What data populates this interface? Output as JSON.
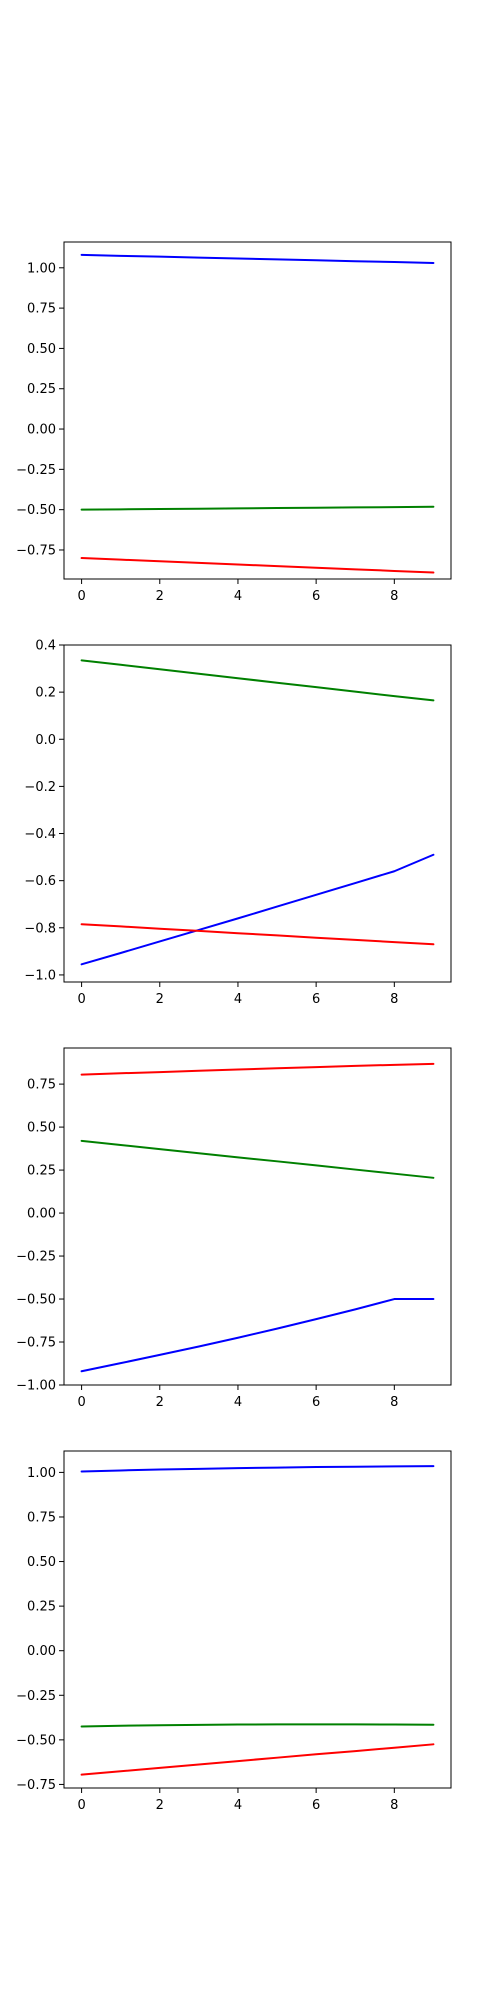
{
  "chart_data": [
    {
      "type": "line",
      "x": [
        0,
        1,
        2,
        3,
        4,
        5,
        6,
        7,
        8,
        9
      ],
      "xlim": [
        -0.45,
        9.45
      ],
      "ylim": [
        -0.93,
        1.16
      ],
      "xticks": [
        "0",
        "2",
        "4",
        "6",
        "8"
      ],
      "yticks": [
        "1.00",
        "0.75",
        "0.50",
        "0.25",
        "0.00",
        "−0.25",
        "−0.50",
        "−0.75"
      ],
      "series": [
        {
          "color": "#0000ff",
          "values": [
            1.08,
            1.074,
            1.069,
            1.063,
            1.058,
            1.052,
            1.047,
            1.041,
            1.036,
            1.03
          ]
        },
        {
          "color": "#008000",
          "values": [
            -0.5,
            -0.498,
            -0.496,
            -0.494,
            -0.492,
            -0.49,
            -0.488,
            -0.486,
            -0.484,
            -0.482
          ]
        },
        {
          "color": "#ff0000",
          "values": [
            -0.8,
            -0.81,
            -0.82,
            -0.83,
            -0.84,
            -0.85,
            -0.86,
            -0.87,
            -0.88,
            -0.89
          ]
        }
      ]
    },
    {
      "type": "line",
      "x": [
        0,
        1,
        2,
        3,
        4,
        5,
        6,
        7,
        8,
        9
      ],
      "xlim": [
        -0.45,
        9.45
      ],
      "ylim": [
        -1.03,
        0.4
      ],
      "xticks": [
        "0",
        "2",
        "4",
        "6",
        "8"
      ],
      "yticks": [
        "0.4",
        "0.2",
        "0.0",
        "−0.2",
        "−0.4",
        "−0.6",
        "−0.8",
        "−1.0"
      ],
      "series": [
        {
          "color": "#008000",
          "values": [
            0.335,
            0.316,
            0.297,
            0.278,
            0.259,
            0.24,
            0.221,
            0.202,
            0.183,
            0.165
          ]
        },
        {
          "color": "#0000ff",
          "values": [
            -0.955,
            -0.907,
            -0.858,
            -0.809,
            -0.76,
            -0.71,
            -0.66,
            -0.61,
            -0.56,
            -0.49
          ]
        },
        {
          "color": "#ff0000",
          "values": [
            -0.785,
            -0.794,
            -0.804,
            -0.813,
            -0.823,
            -0.832,
            -0.842,
            -0.851,
            -0.861,
            -0.87
          ]
        }
      ]
    },
    {
      "type": "line",
      "x": [
        0,
        1,
        2,
        3,
        4,
        5,
        6,
        7,
        8,
        9
      ],
      "xlim": [
        -0.45,
        9.45
      ],
      "ylim": [
        -1.0,
        0.96
      ],
      "xticks": [
        "0",
        "2",
        "4",
        "6",
        "8"
      ],
      "yticks": [
        "0.75",
        "0.50",
        "0.25",
        "0.00",
        "−0.25",
        "−0.50",
        "−0.75",
        "−1.00"
      ],
      "series": [
        {
          "color": "#ff0000",
          "values": [
            0.805,
            0.813,
            0.82,
            0.828,
            0.835,
            0.842,
            0.849,
            0.856,
            0.862,
            0.868
          ]
        },
        {
          "color": "#008000",
          "values": [
            0.42,
            0.396,
            0.372,
            0.348,
            0.324,
            0.301,
            0.277,
            0.253,
            0.229,
            0.205
          ]
        },
        {
          "color": "#0000ff",
          "values": [
            -0.92,
            -0.873,
            -0.825,
            -0.776,
            -0.725,
            -0.672,
            -0.617,
            -0.56,
            -0.5,
            -0.5
          ]
        }
      ]
    },
    {
      "type": "line",
      "x": [
        0,
        1,
        2,
        3,
        4,
        5,
        6,
        7,
        8,
        9
      ],
      "xlim": [
        -0.45,
        9.45
      ],
      "ylim": [
        -0.77,
        1.12
      ],
      "xticks": [
        "0",
        "2",
        "4",
        "6",
        "8"
      ],
      "yticks": [
        "1.00",
        "0.75",
        "0.50",
        "0.25",
        "0.00",
        "−0.25",
        "−0.50",
        "−0.75"
      ],
      "series": [
        {
          "color": "#0000ff",
          "values": [
            1.005,
            1.011,
            1.016,
            1.02,
            1.024,
            1.027,
            1.03,
            1.032,
            1.034,
            1.035
          ]
        },
        {
          "color": "#008000",
          "values": [
            -0.425,
            -0.421,
            -0.418,
            -0.416,
            -0.414,
            -0.413,
            -0.413,
            -0.413,
            -0.414,
            -0.415
          ]
        },
        {
          "color": "#ff0000",
          "values": [
            -0.695,
            -0.676,
            -0.657,
            -0.638,
            -0.619,
            -0.6,
            -0.581,
            -0.563,
            -0.544,
            -0.525
          ]
        }
      ]
    }
  ]
}
